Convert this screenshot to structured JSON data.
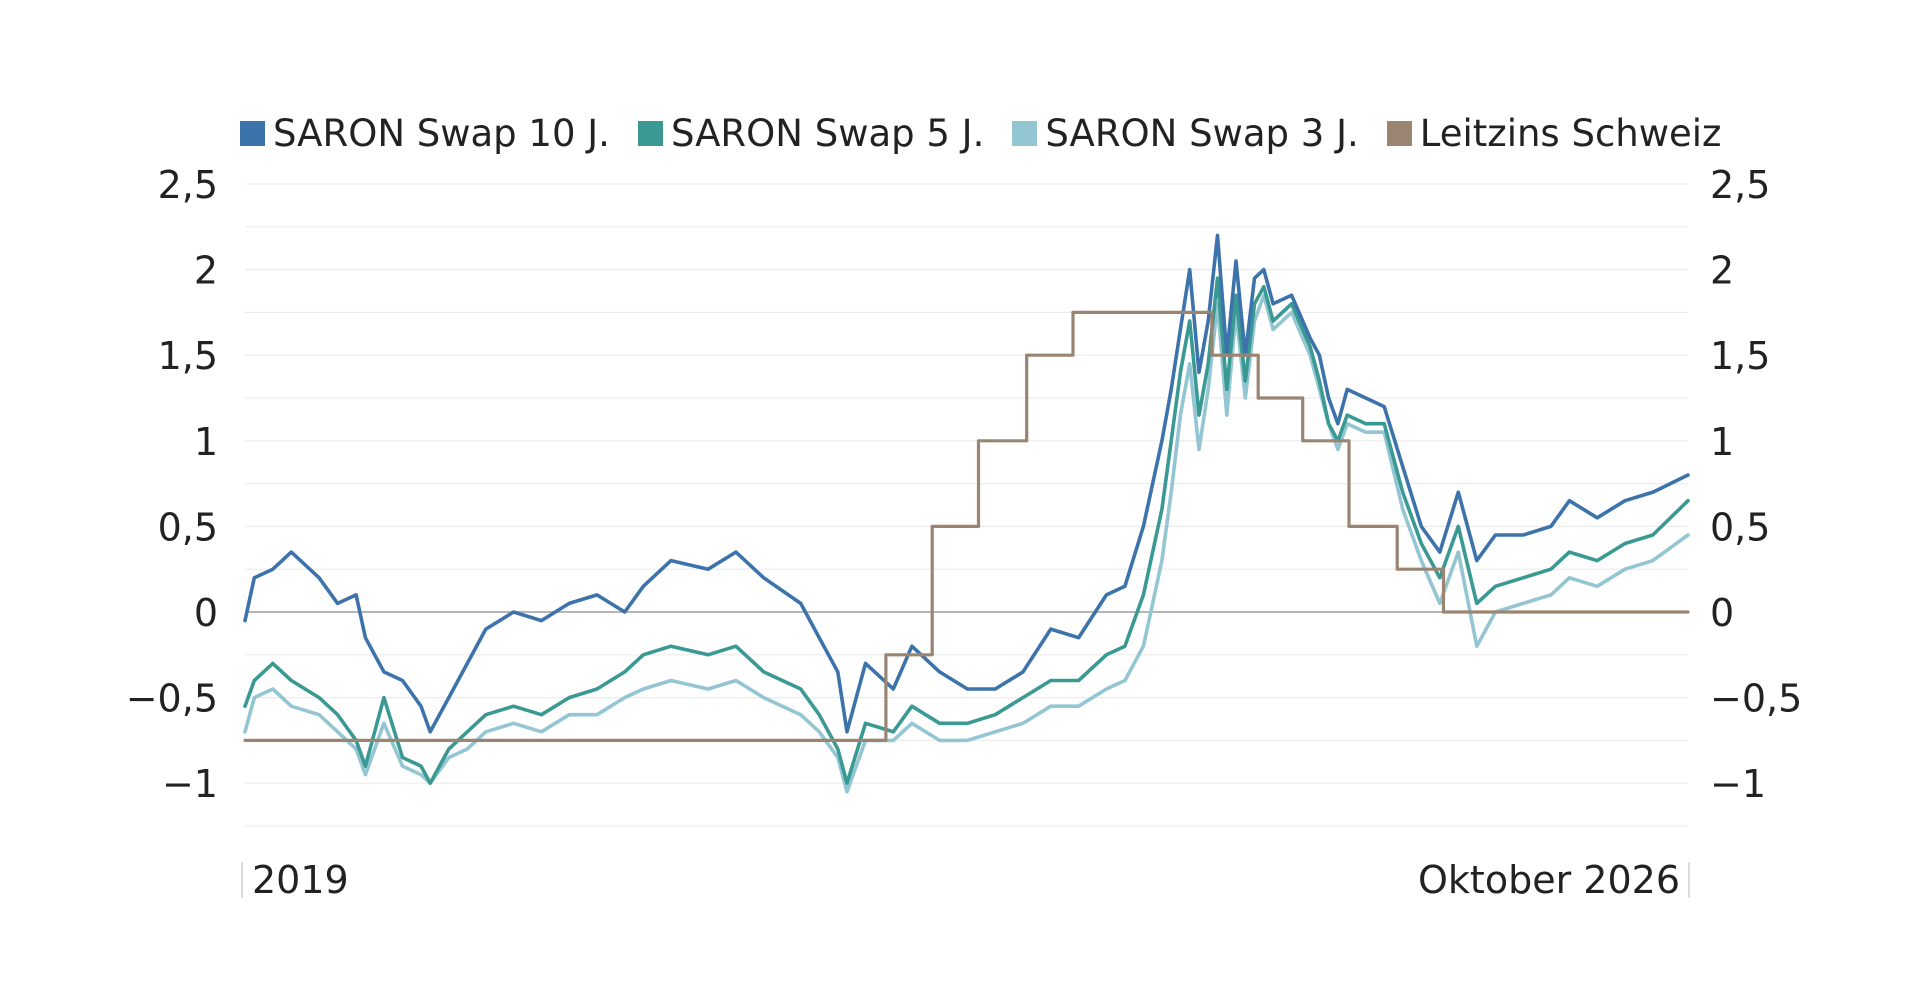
{
  "chart_data": {
    "type": "line",
    "title": "",
    "xlabel": "",
    "ylabel": "",
    "x_tick_labels": [
      "2019",
      "Oktober 2026"
    ],
    "x_range": [
      2019.0,
      2026.79
    ],
    "ylim": [
      -1.25,
      2.5
    ],
    "y_ticks": [
      {
        "value": 2.5,
        "label": "2,5"
      },
      {
        "value": 2,
        "label": "2"
      },
      {
        "value": 1.5,
        "label": "1,5"
      },
      {
        "value": 1,
        "label": "1"
      },
      {
        "value": 0.5,
        "label": "0,5"
      },
      {
        "value": 0,
        "label": "0"
      },
      {
        "value": -0.5,
        "label": "−0,5"
      },
      {
        "value": -1,
        "label": "−1"
      }
    ],
    "grid": true,
    "dual_axis_labels": true,
    "legend_position": "top",
    "series": [
      {
        "name": "SARON Swap 10 J.",
        "color": "#3d73ab",
        "points": [
          [
            2019.0,
            -0.05
          ],
          [
            2019.05,
            0.2
          ],
          [
            2019.15,
            0.25
          ],
          [
            2019.25,
            0.35
          ],
          [
            2019.4,
            0.2
          ],
          [
            2019.5,
            0.05
          ],
          [
            2019.6,
            0.1
          ],
          [
            2019.65,
            -0.15
          ],
          [
            2019.75,
            -0.35
          ],
          [
            2019.85,
            -0.4
          ],
          [
            2019.95,
            -0.55
          ],
          [
            2020.0,
            -0.7
          ],
          [
            2020.1,
            -0.5
          ],
          [
            2020.2,
            -0.3
          ],
          [
            2020.3,
            -0.1
          ],
          [
            2020.45,
            0.0
          ],
          [
            2020.6,
            -0.05
          ],
          [
            2020.75,
            0.05
          ],
          [
            2020.9,
            0.1
          ],
          [
            2021.05,
            0.0
          ],
          [
            2021.15,
            0.15
          ],
          [
            2021.3,
            0.3
          ],
          [
            2021.5,
            0.25
          ],
          [
            2021.65,
            0.35
          ],
          [
            2021.8,
            0.2
          ],
          [
            2022.0,
            0.05
          ],
          [
            2022.1,
            -0.15
          ],
          [
            2022.2,
            -0.35
          ],
          [
            2022.25,
            -0.7
          ],
          [
            2022.35,
            -0.3
          ],
          [
            2022.5,
            -0.45
          ],
          [
            2022.6,
            -0.2
          ],
          [
            2022.75,
            -0.35
          ],
          [
            2022.9,
            -0.45
          ],
          [
            2023.05,
            -0.45
          ],
          [
            2023.2,
            -0.35
          ],
          [
            2023.35,
            -0.1
          ],
          [
            2023.5,
            -0.15
          ],
          [
            2023.65,
            0.1
          ],
          [
            2023.75,
            0.15
          ],
          [
            2023.85,
            0.5
          ],
          [
            2023.95,
            1.0
          ],
          [
            2024.0,
            1.3
          ],
          [
            2024.05,
            1.65
          ],
          [
            2024.1,
            2.0
          ],
          [
            2024.15,
            1.4
          ],
          [
            2024.2,
            1.7
          ],
          [
            2024.25,
            2.2
          ],
          [
            2024.3,
            1.5
          ],
          [
            2024.35,
            2.05
          ],
          [
            2024.4,
            1.5
          ],
          [
            2024.45,
            1.95
          ],
          [
            2024.5,
            2.0
          ],
          [
            2024.55,
            1.8
          ],
          [
            2024.65,
            1.85
          ],
          [
            2024.75,
            1.6
          ],
          [
            2024.8,
            1.5
          ],
          [
            2024.85,
            1.25
          ],
          [
            2024.9,
            1.1
          ],
          [
            2024.95,
            1.3
          ],
          [
            2025.05,
            1.25
          ],
          [
            2025.15,
            1.2
          ],
          [
            2025.25,
            0.85
          ],
          [
            2025.35,
            0.5
          ],
          [
            2025.45,
            0.35
          ],
          [
            2025.55,
            0.7
          ],
          [
            2025.65,
            0.3
          ],
          [
            2025.75,
            0.45
          ],
          [
            2025.9,
            0.45
          ],
          [
            2026.05,
            0.5
          ],
          [
            2026.15,
            0.65
          ],
          [
            2026.3,
            0.55
          ],
          [
            2026.45,
            0.65
          ],
          [
            2026.6,
            0.7
          ],
          [
            2026.79,
            0.8
          ]
        ]
      },
      {
        "name": "SARON Swap 5 J.",
        "color": "#3a9993",
        "points": [
          [
            2019.0,
            -0.55
          ],
          [
            2019.05,
            -0.4
          ],
          [
            2019.15,
            -0.3
          ],
          [
            2019.25,
            -0.4
          ],
          [
            2019.4,
            -0.5
          ],
          [
            2019.5,
            -0.6
          ],
          [
            2019.6,
            -0.75
          ],
          [
            2019.65,
            -0.9
          ],
          [
            2019.75,
            -0.5
          ],
          [
            2019.85,
            -0.85
          ],
          [
            2019.95,
            -0.9
          ],
          [
            2020.0,
            -1.0
          ],
          [
            2020.1,
            -0.8
          ],
          [
            2020.2,
            -0.7
          ],
          [
            2020.3,
            -0.6
          ],
          [
            2020.45,
            -0.55
          ],
          [
            2020.6,
            -0.6
          ],
          [
            2020.75,
            -0.5
          ],
          [
            2020.9,
            -0.45
          ],
          [
            2021.05,
            -0.35
          ],
          [
            2021.15,
            -0.25
          ],
          [
            2021.3,
            -0.2
          ],
          [
            2021.5,
            -0.25
          ],
          [
            2021.65,
            -0.2
          ],
          [
            2021.8,
            -0.35
          ],
          [
            2022.0,
            -0.45
          ],
          [
            2022.1,
            -0.6
          ],
          [
            2022.2,
            -0.8
          ],
          [
            2022.25,
            -1.0
          ],
          [
            2022.35,
            -0.65
          ],
          [
            2022.5,
            -0.7
          ],
          [
            2022.6,
            -0.55
          ],
          [
            2022.75,
            -0.65
          ],
          [
            2022.9,
            -0.65
          ],
          [
            2023.05,
            -0.6
          ],
          [
            2023.2,
            -0.5
          ],
          [
            2023.35,
            -0.4
          ],
          [
            2023.5,
            -0.4
          ],
          [
            2023.65,
            -0.25
          ],
          [
            2023.75,
            -0.2
          ],
          [
            2023.85,
            0.1
          ],
          [
            2023.95,
            0.6
          ],
          [
            2024.0,
            1.0
          ],
          [
            2024.05,
            1.4
          ],
          [
            2024.1,
            1.7
          ],
          [
            2024.15,
            1.15
          ],
          [
            2024.2,
            1.45
          ],
          [
            2024.25,
            1.95
          ],
          [
            2024.3,
            1.3
          ],
          [
            2024.35,
            1.85
          ],
          [
            2024.4,
            1.35
          ],
          [
            2024.45,
            1.8
          ],
          [
            2024.5,
            1.9
          ],
          [
            2024.55,
            1.7
          ],
          [
            2024.65,
            1.8
          ],
          [
            2024.75,
            1.55
          ],
          [
            2024.8,
            1.35
          ],
          [
            2024.85,
            1.1
          ],
          [
            2024.9,
            1.0
          ],
          [
            2024.95,
            1.15
          ],
          [
            2025.05,
            1.1
          ],
          [
            2025.15,
            1.1
          ],
          [
            2025.25,
            0.7
          ],
          [
            2025.35,
            0.4
          ],
          [
            2025.45,
            0.2
          ],
          [
            2025.55,
            0.5
          ],
          [
            2025.65,
            0.05
          ],
          [
            2025.75,
            0.15
          ],
          [
            2025.9,
            0.2
          ],
          [
            2026.05,
            0.25
          ],
          [
            2026.15,
            0.35
          ],
          [
            2026.3,
            0.3
          ],
          [
            2026.45,
            0.4
          ],
          [
            2026.6,
            0.45
          ],
          [
            2026.79,
            0.65
          ]
        ]
      },
      {
        "name": "SARON Swap 3 J.",
        "color": "#93c6d2",
        "points": [
          [
            2019.0,
            -0.7
          ],
          [
            2019.05,
            -0.5
          ],
          [
            2019.15,
            -0.45
          ],
          [
            2019.25,
            -0.55
          ],
          [
            2019.4,
            -0.6
          ],
          [
            2019.5,
            -0.7
          ],
          [
            2019.6,
            -0.8
          ],
          [
            2019.65,
            -0.95
          ],
          [
            2019.75,
            -0.65
          ],
          [
            2019.85,
            -0.9
          ],
          [
            2019.95,
            -0.95
          ],
          [
            2020.0,
            -1.0
          ],
          [
            2020.1,
            -0.85
          ],
          [
            2020.2,
            -0.8
          ],
          [
            2020.3,
            -0.7
          ],
          [
            2020.45,
            -0.65
          ],
          [
            2020.6,
            -0.7
          ],
          [
            2020.75,
            -0.6
          ],
          [
            2020.9,
            -0.6
          ],
          [
            2021.05,
            -0.5
          ],
          [
            2021.15,
            -0.45
          ],
          [
            2021.3,
            -0.4
          ],
          [
            2021.5,
            -0.45
          ],
          [
            2021.65,
            -0.4
          ],
          [
            2021.8,
            -0.5
          ],
          [
            2022.0,
            -0.6
          ],
          [
            2022.1,
            -0.7
          ],
          [
            2022.2,
            -0.85
          ],
          [
            2022.25,
            -1.05
          ],
          [
            2022.35,
            -0.75
          ],
          [
            2022.5,
            -0.75
          ],
          [
            2022.6,
            -0.65
          ],
          [
            2022.75,
            -0.75
          ],
          [
            2022.9,
            -0.75
          ],
          [
            2023.05,
            -0.7
          ],
          [
            2023.2,
            -0.65
          ],
          [
            2023.35,
            -0.55
          ],
          [
            2023.5,
            -0.55
          ],
          [
            2023.65,
            -0.45
          ],
          [
            2023.75,
            -0.4
          ],
          [
            2023.85,
            -0.2
          ],
          [
            2023.95,
            0.3
          ],
          [
            2024.0,
            0.7
          ],
          [
            2024.05,
            1.15
          ],
          [
            2024.1,
            1.45
          ],
          [
            2024.15,
            0.95
          ],
          [
            2024.2,
            1.3
          ],
          [
            2024.25,
            1.8
          ],
          [
            2024.3,
            1.15
          ],
          [
            2024.35,
            1.75
          ],
          [
            2024.4,
            1.25
          ],
          [
            2024.45,
            1.7
          ],
          [
            2024.5,
            1.85
          ],
          [
            2024.55,
            1.65
          ],
          [
            2024.65,
            1.75
          ],
          [
            2024.75,
            1.5
          ],
          [
            2024.8,
            1.3
          ],
          [
            2024.85,
            1.1
          ],
          [
            2024.9,
            0.95
          ],
          [
            2024.95,
            1.1
          ],
          [
            2025.05,
            1.05
          ],
          [
            2025.15,
            1.05
          ],
          [
            2025.25,
            0.6
          ],
          [
            2025.35,
            0.3
          ],
          [
            2025.45,
            0.05
          ],
          [
            2025.55,
            0.35
          ],
          [
            2025.65,
            -0.2
          ],
          [
            2025.75,
            0.0
          ],
          [
            2025.9,
            0.05
          ],
          [
            2026.05,
            0.1
          ],
          [
            2026.15,
            0.2
          ],
          [
            2026.3,
            0.15
          ],
          [
            2026.45,
            0.25
          ],
          [
            2026.6,
            0.3
          ],
          [
            2026.79,
            0.45
          ]
        ]
      },
      {
        "name": "Leitzins Schweiz",
        "color": "#9a8472",
        "step": true,
        "points": [
          [
            2019.0,
            -0.75
          ],
          [
            2022.46,
            -0.75
          ],
          [
            2022.46,
            -0.25
          ],
          [
            2022.71,
            -0.25
          ],
          [
            2022.71,
            0.5
          ],
          [
            2022.96,
            0.5
          ],
          [
            2022.96,
            1.0
          ],
          [
            2023.22,
            1.0
          ],
          [
            2023.22,
            1.5
          ],
          [
            2023.47,
            1.5
          ],
          [
            2023.47,
            1.75
          ],
          [
            2024.22,
            1.75
          ],
          [
            2024.22,
            1.5
          ],
          [
            2024.47,
            1.5
          ],
          [
            2024.47,
            1.25
          ],
          [
            2024.71,
            1.25
          ],
          [
            2024.71,
            1.0
          ],
          [
            2024.96,
            1.0
          ],
          [
            2024.96,
            0.5
          ],
          [
            2025.22,
            0.5
          ],
          [
            2025.22,
            0.25
          ],
          [
            2025.47,
            0.25
          ],
          [
            2025.47,
            0.0
          ],
          [
            2026.79,
            0.0
          ]
        ]
      }
    ]
  }
}
